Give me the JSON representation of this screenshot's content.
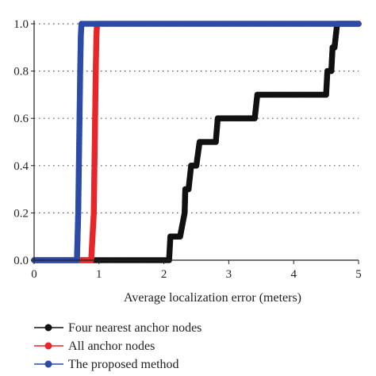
{
  "chart_data": {
    "type": "line",
    "title": "",
    "xlabel": "Average localization error (meters)",
    "ylabel": "",
    "xlim": [
      0,
      5
    ],
    "ylim": [
      0,
      1
    ],
    "x_ticks": [
      "0",
      "1",
      "2",
      "3",
      "4",
      "5"
    ],
    "y_ticks": [
      "0.0",
      "0.2",
      "0.4",
      "0.6",
      "0.8",
      "1.0"
    ],
    "grid": "horizontal dotted",
    "legend_position": "bottom-left",
    "series": [
      {
        "name": "Four nearest anchor nodes",
        "color": "#111111",
        "x": [
          0.0,
          2.08,
          2.1,
          2.25,
          2.32,
          2.33,
          2.38,
          2.42,
          2.5,
          2.55,
          2.62,
          2.8,
          2.83,
          3.4,
          3.44,
          4.5,
          4.52,
          4.58,
          4.6,
          4.63,
          4.67,
          5.0
        ],
        "y": [
          0.0,
          0.0,
          0.1,
          0.1,
          0.2,
          0.3,
          0.3,
          0.4,
          0.4,
          0.5,
          0.5,
          0.5,
          0.6,
          0.6,
          0.7,
          0.7,
          0.8,
          0.8,
          0.9,
          0.9,
          1.0,
          1.0
        ]
      },
      {
        "name": "All anchor nodes",
        "color": "#e8262a",
        "x": [
          0.0,
          0.72,
          0.88,
          0.9,
          0.92,
          0.93,
          0.94,
          0.95,
          0.96,
          0.97,
          5.0
        ],
        "y": [
          0.0,
          0.0,
          0.0,
          0.1,
          0.2,
          0.4,
          0.6,
          0.8,
          0.95,
          1.0,
          1.0
        ]
      },
      {
        "name": "The proposed method",
        "color": "#2b4ba6",
        "x": [
          0.0,
          0.66,
          0.67,
          0.68,
          0.69,
          0.7,
          0.71,
          0.72,
          0.73,
          5.0
        ],
        "y": [
          0.0,
          0.0,
          0.1,
          0.2,
          0.4,
          0.6,
          0.8,
          0.95,
          1.0,
          1.0
        ]
      }
    ]
  }
}
